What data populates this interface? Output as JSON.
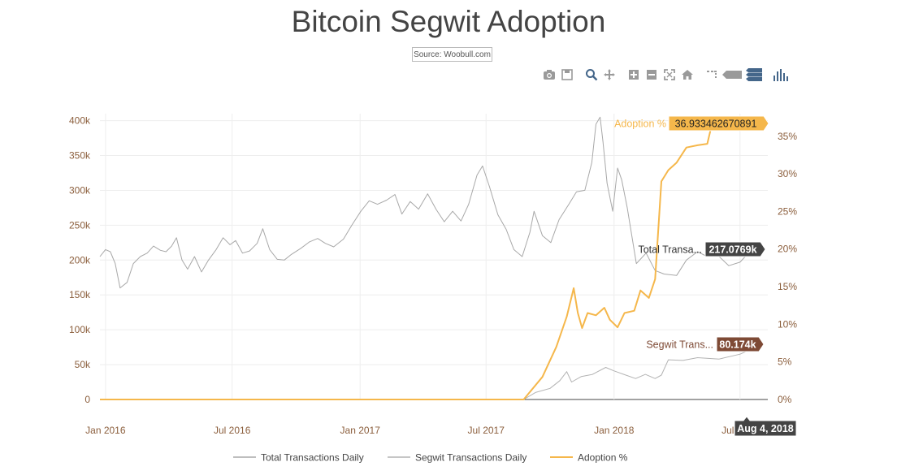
{
  "page": {
    "title": "Bitcoin Segwit Adoption",
    "source_label": "Source: Woobull.com"
  },
  "toolbar": {
    "buttons": [
      "camera-icon",
      "save-icon",
      "zoom-icon",
      "pan-icon",
      "zoom-in-icon",
      "zoom-out-icon",
      "autoscale-icon",
      "reset-axes-icon",
      "spike-lines-icon",
      "hover-closest-icon",
      "hover-compare-icon",
      "bars-icon"
    ]
  },
  "hover": {
    "x_label": "Aug 4, 2018",
    "total_label": "Total Transa...",
    "total_value": "217.0769k",
    "segwit_label": "Segwit Trans...",
    "segwit_value": "80.174k",
    "adoption_label": "Adoption %",
    "adoption_value": "36.933462670891"
  },
  "colors": {
    "total": "#a8a8a8",
    "segwit": "#b3b3b3",
    "adoption": "#f5b74b",
    "axis_text": "#8b5e3c",
    "grid": "#eeeeee",
    "hover_total_bg": "#444444",
    "hover_segwit_bg": "#7e4a35",
    "hover_adoption_bg": "#f5b74b"
  },
  "chart_data": {
    "type": "line",
    "title": "Bitcoin Segwit Adoption",
    "x_ticks": [
      "Jan 2016",
      "Jul 2016",
      "Jan 2017",
      "Jul 2017",
      "Jan 2018",
      "Jul 2018"
    ],
    "y_left_ticks": [
      "0",
      "50k",
      "100k",
      "150k",
      "200k",
      "250k",
      "300k",
      "350k",
      "400k"
    ],
    "y_left_range": [
      0,
      410000
    ],
    "y_right_ticks": [
      "0%",
      "5%",
      "10%",
      "15%",
      "20%",
      "25%",
      "30%",
      "35%"
    ],
    "y_right_range": [
      0,
      38
    ],
    "x_range": [
      "2015-12-24",
      "2018-08-10"
    ],
    "legend": [
      "Total Transactions Daily",
      "Segwit Transactions Daily",
      "Adoption %"
    ],
    "legend_position": "bottom",
    "grid": true,
    "series": [
      {
        "name": "Total Transactions Daily",
        "axis": "left",
        "points": [
          [
            "2015-12-24",
            205000
          ],
          [
            "2016-01-01",
            215000
          ],
          [
            "2016-01-08",
            212000
          ],
          [
            "2016-01-15",
            195000
          ],
          [
            "2016-01-22",
            160000
          ],
          [
            "2016-02-01",
            168000
          ],
          [
            "2016-02-10",
            195000
          ],
          [
            "2016-02-20",
            205000
          ],
          [
            "2016-03-01",
            210000
          ],
          [
            "2016-03-10",
            220000
          ],
          [
            "2016-03-20",
            214000
          ],
          [
            "2016-03-28",
            212000
          ],
          [
            "2016-04-05",
            220000
          ],
          [
            "2016-04-12",
            232000
          ],
          [
            "2016-04-20",
            200000
          ],
          [
            "2016-04-28",
            187000
          ],
          [
            "2016-05-08",
            205000
          ],
          [
            "2016-05-18",
            183000
          ],
          [
            "2016-05-28",
            200000
          ],
          [
            "2016-06-08",
            215000
          ],
          [
            "2016-06-18",
            232000
          ],
          [
            "2016-06-28",
            222000
          ],
          [
            "2016-07-06",
            228000
          ],
          [
            "2016-07-16",
            210000
          ],
          [
            "2016-07-26",
            213000
          ],
          [
            "2016-08-06",
            224000
          ],
          [
            "2016-08-14",
            245000
          ],
          [
            "2016-08-24",
            215000
          ],
          [
            "2016-09-04",
            201000
          ],
          [
            "2016-09-14",
            200000
          ],
          [
            "2016-09-24",
            208000
          ],
          [
            "2016-10-08",
            217000
          ],
          [
            "2016-10-20",
            226000
          ],
          [
            "2016-11-01",
            231000
          ],
          [
            "2016-11-12",
            224000
          ],
          [
            "2016-11-24",
            219000
          ],
          [
            "2016-12-08",
            230000
          ],
          [
            "2016-12-20",
            250000
          ],
          [
            "2017-01-02",
            270000
          ],
          [
            "2017-01-14",
            285000
          ],
          [
            "2017-01-26",
            280000
          ],
          [
            "2017-02-08",
            286000
          ],
          [
            "2017-02-20",
            294000
          ],
          [
            "2017-03-02",
            266000
          ],
          [
            "2017-03-14",
            284000
          ],
          [
            "2017-03-26",
            273000
          ],
          [
            "2017-04-08",
            295000
          ],
          [
            "2017-04-20",
            273000
          ],
          [
            "2017-05-02",
            255000
          ],
          [
            "2017-05-14",
            270000
          ],
          [
            "2017-05-26",
            256000
          ],
          [
            "2017-06-06",
            280000
          ],
          [
            "2017-06-18",
            322000
          ],
          [
            "2017-06-26",
            335000
          ],
          [
            "2017-07-06",
            305000
          ],
          [
            "2017-07-18",
            265000
          ],
          [
            "2017-07-30",
            244000
          ],
          [
            "2017-08-10",
            215000
          ],
          [
            "2017-08-22",
            205000
          ],
          [
            "2017-09-02",
            240000
          ],
          [
            "2017-09-08",
            270000
          ],
          [
            "2017-09-20",
            235000
          ],
          [
            "2017-10-02",
            225000
          ],
          [
            "2017-10-14",
            258000
          ],
          [
            "2017-10-28",
            280000
          ],
          [
            "2017-11-08",
            298000
          ],
          [
            "2017-11-20",
            300000
          ],
          [
            "2017-11-30",
            340000
          ],
          [
            "2017-12-06",
            395000
          ],
          [
            "2017-12-12",
            405000
          ],
          [
            "2017-12-16",
            370000
          ],
          [
            "2017-12-22",
            310000
          ],
          [
            "2017-12-30",
            270000
          ],
          [
            "2018-01-06",
            332000
          ],
          [
            "2018-01-12",
            315000
          ],
          [
            "2018-01-20",
            275000
          ],
          [
            "2018-02-02",
            195000
          ],
          [
            "2018-02-16",
            210000
          ],
          [
            "2018-03-01",
            185000
          ],
          [
            "2018-03-14",
            180000
          ],
          [
            "2018-04-01",
            178000
          ],
          [
            "2018-04-15",
            200000
          ],
          [
            "2018-05-01",
            212000
          ],
          [
            "2018-05-15",
            205000
          ],
          [
            "2018-06-01",
            205000
          ],
          [
            "2018-06-15",
            192000
          ],
          [
            "2018-07-01",
            197000
          ],
          [
            "2018-07-15",
            212000
          ],
          [
            "2018-08-04",
            217077
          ]
        ]
      },
      {
        "name": "Segwit Transactions Daily",
        "axis": "left",
        "points": [
          [
            "2015-12-24",
            0
          ],
          [
            "2017-08-24",
            0
          ],
          [
            "2017-09-10",
            10000
          ],
          [
            "2017-10-01",
            16000
          ],
          [
            "2017-10-15",
            27000
          ],
          [
            "2017-10-25",
            40000
          ],
          [
            "2017-11-01",
            25000
          ],
          [
            "2017-11-15",
            33000
          ],
          [
            "2017-12-01",
            36000
          ],
          [
            "2017-12-20",
            46000
          ],
          [
            "2018-01-01",
            41000
          ],
          [
            "2018-01-15",
            36000
          ],
          [
            "2018-02-01",
            30000
          ],
          [
            "2018-02-15",
            36000
          ],
          [
            "2018-03-01",
            30000
          ],
          [
            "2018-03-10",
            35000
          ],
          [
            "2018-03-20",
            57000
          ],
          [
            "2018-04-10",
            56000
          ],
          [
            "2018-05-01",
            60000
          ],
          [
            "2018-06-01",
            58000
          ],
          [
            "2018-07-01",
            65000
          ],
          [
            "2018-08-04",
            80174
          ]
        ]
      },
      {
        "name": "Adoption %",
        "axis": "right",
        "points": [
          [
            "2015-12-24",
            0
          ],
          [
            "2017-08-24",
            0
          ],
          [
            "2017-09-20",
            3
          ],
          [
            "2017-10-10",
            7
          ],
          [
            "2017-10-25",
            11
          ],
          [
            "2017-11-04",
            14.8
          ],
          [
            "2017-11-10",
            11.5
          ],
          [
            "2017-11-16",
            9.5
          ],
          [
            "2017-11-24",
            11.5
          ],
          [
            "2017-12-06",
            11.2
          ],
          [
            "2017-12-18",
            12.2
          ],
          [
            "2017-12-26",
            10.6
          ],
          [
            "2018-01-06",
            9.6
          ],
          [
            "2018-01-16",
            11.5
          ],
          [
            "2018-01-30",
            11.8
          ],
          [
            "2018-02-08",
            14.5
          ],
          [
            "2018-02-20",
            13.5
          ],
          [
            "2018-03-01",
            16
          ],
          [
            "2018-03-10",
            29
          ],
          [
            "2018-03-20",
            30.5
          ],
          [
            "2018-04-01",
            31.5
          ],
          [
            "2018-04-15",
            33.5
          ],
          [
            "2018-05-01",
            33.8
          ],
          [
            "2018-05-15",
            34
          ],
          [
            "2018-05-24",
            37.5
          ]
        ]
      }
    ]
  }
}
